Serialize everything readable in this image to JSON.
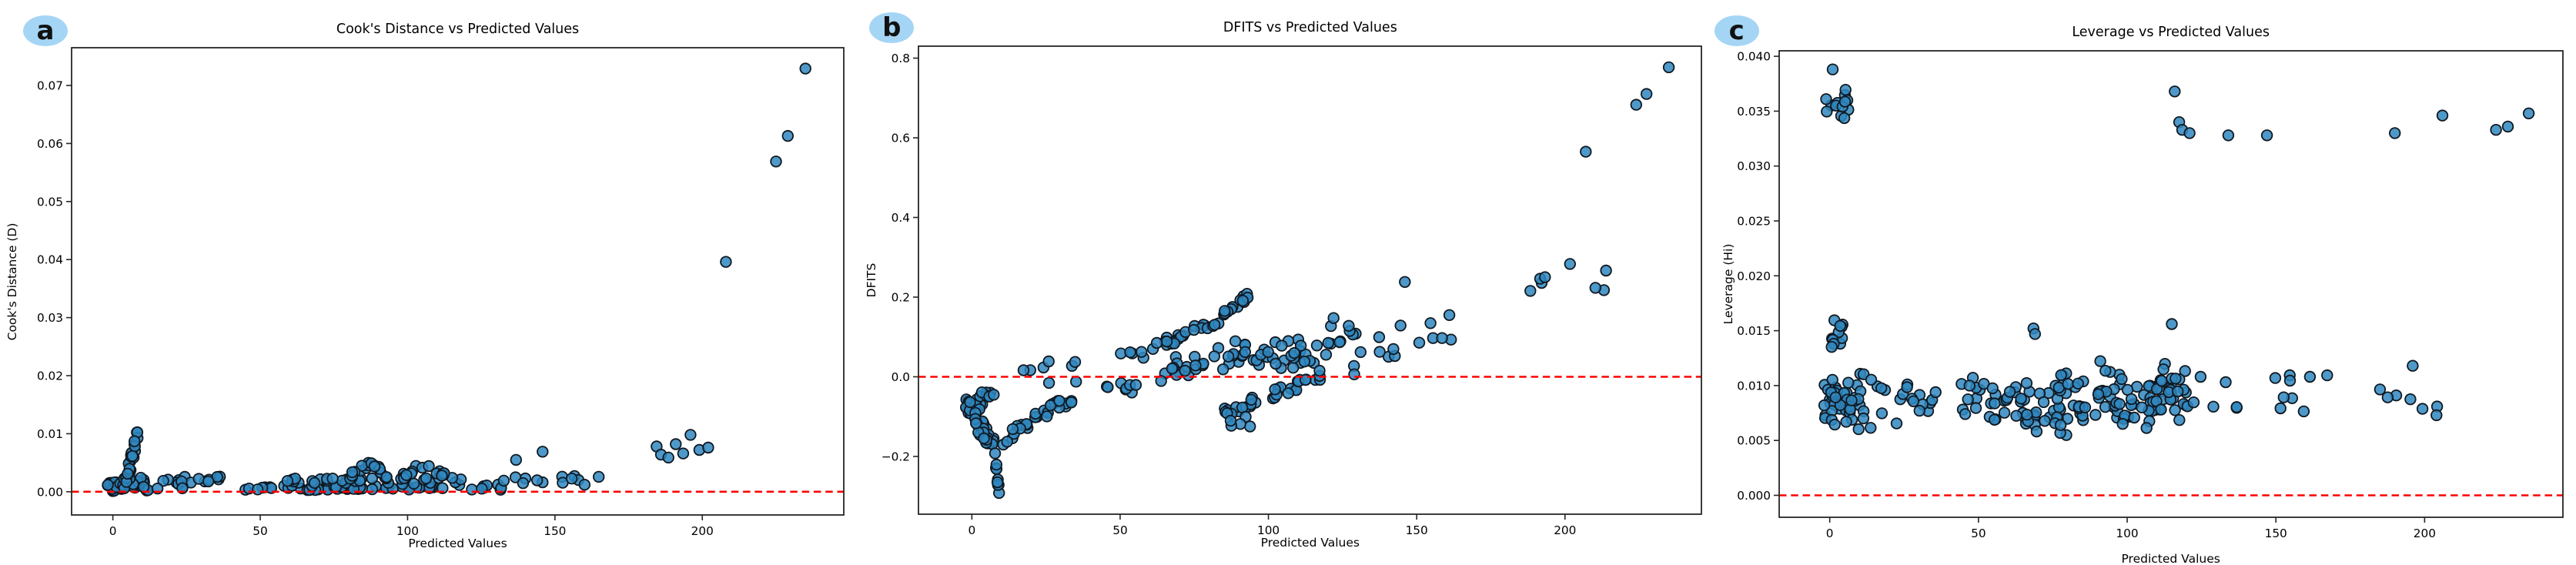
{
  "figure": {
    "background": "#ffffff",
    "description": "Three regression diagnostic scatter plots versus predicted values"
  },
  "colors": {
    "dot_fill": "#2f87bf",
    "dot_edge": "#101820",
    "refline": "#ff0000",
    "badge_bg": "#a5d5f5",
    "axis": "#262626",
    "text": "#000000"
  },
  "chart_data": [
    {
      "panel_label": "a",
      "type": "scatter",
      "title": "Cook's Distance vs Predicted Values",
      "xlabel": "Predicted Values",
      "ylabel": "Cook's Distance (D)",
      "xlim": [
        -14,
        248
      ],
      "ylim": [
        -0.004,
        0.0765
      ],
      "x_ticks": [
        0,
        50,
        100,
        150,
        200
      ],
      "x_tick_labels": [
        "0",
        "50",
        "100",
        "150",
        "200"
      ],
      "y_ticks": [
        0,
        0.01,
        0.02,
        0.03,
        0.04,
        0.05,
        0.06,
        0.07
      ],
      "y_tick_labels": [
        "0.00",
        "0.01",
        "0.02",
        "0.03",
        "0.04",
        "0.05",
        "0.06",
        "0.07"
      ],
      "refline": {
        "y": 0,
        "style": "dashed",
        "color": "#ff0000"
      },
      "grid": false,
      "legend": null,
      "points_are_approximate": true,
      "clusters": [
        {
          "kind": "box",
          "x": [
            -2,
            3.5
          ],
          "y": [
            0,
            0.002
          ],
          "n": 40
        },
        {
          "kind": "box",
          "x": [
            3.5,
            12
          ],
          "y": [
            0,
            0.0026
          ],
          "n": 30
        },
        {
          "kind": "trend",
          "x": [
            4.5,
            8.8
          ],
          "y_start": 0.002,
          "y_end": 0.0103,
          "jitter": 0.0013,
          "n": 22
        },
        {
          "kind": "box",
          "x": [
            13,
            37
          ],
          "y": [
            0.0003,
            0.003
          ],
          "n": 18
        },
        {
          "kind": "box",
          "x": [
            44,
            132
          ],
          "y": [
            0.0001,
            0.0013
          ],
          "n": 62
        },
        {
          "kind": "box",
          "x": [
            58,
            130
          ],
          "y": [
            0.0012,
            0.0028
          ],
          "n": 32
        },
        {
          "kind": "trend",
          "x": [
            80,
            87.5
          ],
          "y_start": 0.0025,
          "y_end": 0.0052,
          "jitter": 0.0006,
          "n": 10
        },
        {
          "kind": "trend",
          "x": [
            87.5,
            93
          ],
          "y_start": 0.005,
          "y_end": 0.0028,
          "jitter": 0.0005,
          "n": 8
        },
        {
          "kind": "trend",
          "x": [
            97,
            106
          ],
          "y_start": 0.0024,
          "y_end": 0.0047,
          "jitter": 0.0006,
          "n": 9
        },
        {
          "kind": "trend",
          "x": [
            106,
            113
          ],
          "y_start": 0.0045,
          "y_end": 0.0026,
          "jitter": 0.0005,
          "n": 8
        },
        {
          "kind": "box",
          "x": [
            132,
            165
          ],
          "y": [
            0.001,
            0.0036
          ],
          "n": 13
        }
      ],
      "outlier_points": [
        [
          136.8,
          0.0055
        ],
        [
          145.8,
          0.0069
        ],
        [
          184.5,
          0.0078
        ],
        [
          186,
          0.0064
        ],
        [
          188.5,
          0.0059
        ],
        [
          191,
          0.0082
        ],
        [
          193.5,
          0.0066
        ],
        [
          196,
          0.0098
        ],
        [
          199,
          0.0072
        ],
        [
          202,
          0.0076
        ],
        [
          208,
          0.0396
        ],
        [
          225,
          0.0569
        ],
        [
          229,
          0.0613
        ],
        [
          235,
          0.0729
        ]
      ]
    },
    {
      "panel_label": "b",
      "type": "scatter",
      "title": "DFITS vs Predicted Values",
      "xlabel": "Predicted Values",
      "ylabel": "DFITS",
      "xlim": [
        -18,
        246
      ],
      "ylim": [
        -0.345,
        0.83
      ],
      "x_ticks": [
        0,
        50,
        100,
        150,
        200
      ],
      "x_tick_labels": [
        "0",
        "50",
        "100",
        "150",
        "200"
      ],
      "y_ticks": [
        -0.2,
        0,
        0.2,
        0.4,
        0.6,
        0.8
      ],
      "y_tick_labels": [
        "−0.2",
        "0.0",
        "0.2",
        "0.4",
        "0.6",
        "0.8"
      ],
      "refline": {
        "y": 0,
        "style": "dashed",
        "color": "#ff0000"
      },
      "grid": false,
      "legend": null,
      "points_are_approximate": true,
      "clusters": [
        {
          "kind": "box",
          "x": [
            -2,
            4
          ],
          "y": [
            -0.095,
            -0.05
          ],
          "n": 22
        },
        {
          "kind": "trend",
          "x": [
            1,
            8
          ],
          "y_start": -0.1,
          "y_end": -0.185,
          "jitter": 0.025,
          "n": 24
        },
        {
          "kind": "trend",
          "x": [
            7.8,
            9.4
          ],
          "y_start": -0.2,
          "y_end": -0.31,
          "jitter": 0.014,
          "n": 9
        },
        {
          "kind": "box",
          "x": [
            0.5,
            9.5
          ],
          "y": [
            -0.054,
            -0.032
          ],
          "n": 8
        },
        {
          "kind": "trend",
          "x": [
            10,
            22
          ],
          "y_start": -0.162,
          "y_end": -0.1,
          "jitter": 0.012,
          "n": 14
        },
        {
          "kind": "trend",
          "x": [
            22,
            36
          ],
          "y_start": -0.1,
          "y_end": -0.055,
          "jitter": 0.018,
          "n": 14
        },
        {
          "kind": "box",
          "x": [
            16,
            36
          ],
          "y": [
            -0.03,
            0.06
          ],
          "n": 8
        },
        {
          "kind": "box",
          "x": [
            45,
            60
          ],
          "y": [
            -0.042,
            -0.015
          ],
          "n": 8
        },
        {
          "kind": "box",
          "x": [
            49,
            59
          ],
          "y": [
            0.04,
            0.068
          ],
          "n": 5
        },
        {
          "kind": "trend",
          "x": [
            60,
            80
          ],
          "y_start": 0.068,
          "y_end": 0.133,
          "jitter": 0.012,
          "n": 20
        },
        {
          "kind": "box",
          "x": [
            62,
            80
          ],
          "y": [
            -0.015,
            0.06
          ],
          "n": 16
        },
        {
          "kind": "trend",
          "x": [
            80,
            94.5
          ],
          "y_start": 0.125,
          "y_end": 0.21,
          "jitter": 0.01,
          "n": 17
        },
        {
          "kind": "box",
          "x": [
            80,
            115.5
          ],
          "y": [
            0.012,
            0.1
          ],
          "n": 40
        },
        {
          "kind": "trend",
          "x": [
            85,
            118.5
          ],
          "y_start": -0.09,
          "y_end": 0.003,
          "jitter": 0.012,
          "n": 32
        },
        {
          "kind": "box",
          "x": [
            85,
            94
          ],
          "y": [
            -0.126,
            -0.098
          ],
          "n": 5
        },
        {
          "kind": "box",
          "x": [
            116,
            131.5
          ],
          "y": [
            0,
            0.155
          ],
          "n": 16
        },
        {
          "kind": "box",
          "x": [
            135,
            164
          ],
          "y": [
            0.03,
            0.16
          ],
          "n": 11
        },
        {
          "kind": "box",
          "x": [
            188,
            214
          ],
          "y": [
            0.19,
            0.29
          ],
          "n": 8
        }
      ],
      "outlier_points": [
        [
          146,
          0.238
        ],
        [
          161,
          0.155
        ],
        [
          207,
          0.565
        ],
        [
          224,
          0.683
        ],
        [
          227.5,
          0.71
        ],
        [
          235,
          0.777
        ]
      ]
    },
    {
      "panel_label": "c",
      "type": "scatter",
      "title": "Leverage vs Predicted Values",
      "xlabel": "Predicted Values",
      "ylabel": "Leverage (Hi)",
      "xlim": [
        -17,
        246.5
      ],
      "ylim": [
        -0.002,
        0.0405
      ],
      "x_ticks": [
        0,
        50,
        100,
        150,
        200
      ],
      "x_tick_labels": [
        "0",
        "50",
        "100",
        "150",
        "200"
      ],
      "y_ticks": [
        0,
        0.005,
        0.01,
        0.015,
        0.02,
        0.025,
        0.03,
        0.035,
        0.04
      ],
      "y_tick_labels": [
        "0.000",
        "0.005",
        "0.010",
        "0.015",
        "0.020",
        "0.025",
        "0.030",
        "0.035",
        "0.040"
      ],
      "refline": {
        "y": 0,
        "style": "dashed",
        "color": "#ff0000"
      },
      "grid": false,
      "legend": null,
      "points_are_approximate": true,
      "clusters": [
        {
          "kind": "box",
          "x": [
            -1.5,
            6.5
          ],
          "y": [
            0.0333,
            0.0374
          ],
          "n": 13
        },
        {
          "kind": "box",
          "x": [
            -2,
            11.5
          ],
          "y": [
            0.0052,
            0.0118
          ],
          "n": 46
        },
        {
          "kind": "box",
          "x": [
            0.5,
            4.5
          ],
          "y": [
            0.0118,
            0.0165
          ],
          "n": 11
        },
        {
          "kind": "box",
          "x": [
            13,
            38
          ],
          "y": [
            0.0052,
            0.011
          ],
          "n": 20
        },
        {
          "kind": "box",
          "x": [
            44,
            75
          ],
          "y": [
            0.0052,
            0.0112
          ],
          "n": 46
        },
        {
          "kind": "box",
          "x": [
            75,
            120
          ],
          "y": [
            0.0052,
            0.0124
          ],
          "n": 108
        },
        {
          "kind": "box",
          "x": [
            120,
            168
          ],
          "y": [
            0.006,
            0.0123
          ],
          "n": 16
        },
        {
          "kind": "box",
          "x": [
            183,
            206
          ],
          "y": [
            0.0065,
            0.012
          ],
          "n": 6
        }
      ],
      "outlier_points": [
        [
          1,
          0.0388
        ],
        [
          68.5,
          0.0152
        ],
        [
          69,
          0.0147
        ],
        [
          115,
          0.0156
        ],
        [
          116,
          0.0368
        ],
        [
          117.5,
          0.034
        ],
        [
          118.5,
          0.0333
        ],
        [
          121,
          0.033
        ],
        [
          134,
          0.0328
        ],
        [
          147,
          0.0328
        ],
        [
          190,
          0.033
        ],
        [
          206,
          0.0346
        ],
        [
          224,
          0.0333
        ],
        [
          228,
          0.0336
        ],
        [
          235,
          0.0348
        ],
        [
          47,
          0.01
        ],
        [
          196,
          0.0118
        ],
        [
          204,
          0.0073
        ]
      ]
    }
  ]
}
